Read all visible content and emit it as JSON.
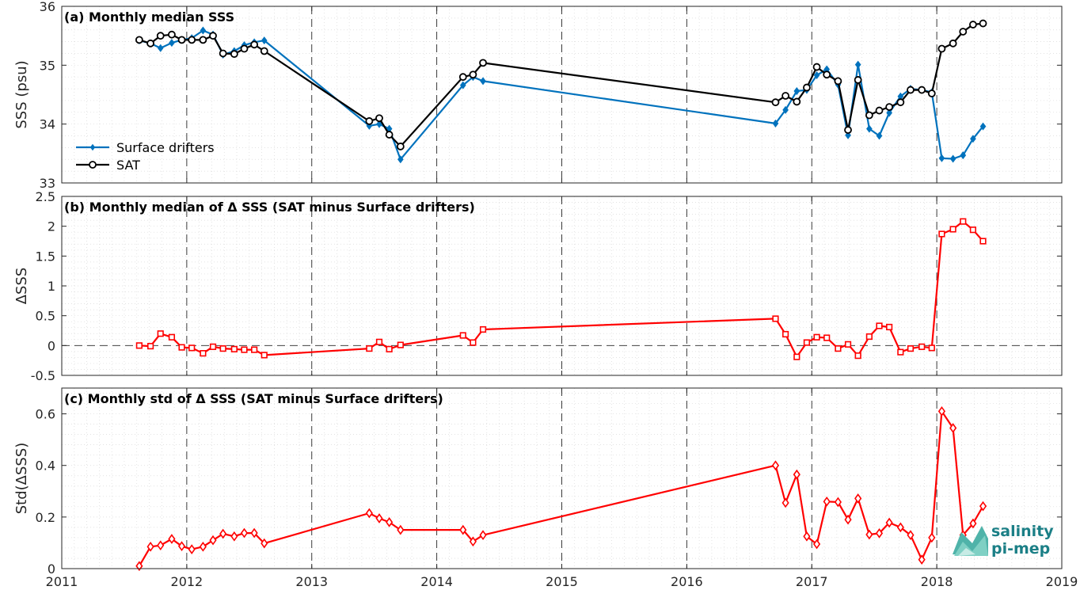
{
  "chart_data": [
    {
      "type": "line",
      "title": "(a) Monthly median SSS",
      "xlabel": "",
      "ylabel": "SSS (psu)",
      "xlim": [
        2011,
        2019
      ],
      "ylim": [
        33,
        36
      ],
      "xticks": [
        2011,
        2012,
        2013,
        2014,
        2015,
        2016,
        2017,
        2018,
        2019
      ],
      "yticks": [
        33,
        34,
        35,
        36
      ],
      "grid": "minor dotted, major dashed vertical at years",
      "legend": "bottom-left",
      "series": [
        {
          "name": "Surface drifters",
          "color": "#0072BD",
          "marker": "diamond",
          "x": [
            2011.62,
            2011.71,
            2011.79,
            2011.88,
            2011.96,
            2012.04,
            2012.13,
            2012.21,
            2012.29,
            2012.38,
            2012.46,
            2012.54,
            2012.62,
            2013.46,
            2013.54,
            2013.62,
            2013.71,
            2014.21,
            2014.29,
            2014.37,
            2016.71,
            2016.79,
            2016.88,
            2016.96,
            2017.04,
            2017.12,
            2017.21,
            2017.29,
            2017.37,
            2017.46,
            2017.54,
            2017.62,
            2017.71,
            2017.79,
            2017.88,
            2017.96,
            2018.04,
            2018.13,
            2018.21,
            2018.29,
            2018.37
          ],
          "y": [
            35.42,
            35.37,
            35.29,
            35.38,
            35.43,
            35.46,
            35.59,
            35.52,
            35.18,
            35.24,
            35.34,
            35.39,
            35.42,
            33.97,
            34.0,
            33.92,
            33.4,
            34.66,
            34.8,
            34.73,
            34.01,
            34.24,
            34.56,
            34.58,
            34.83,
            34.93,
            34.67,
            33.81,
            35.01,
            33.92,
            33.8,
            34.19,
            34.47,
            34.6,
            34.58,
            34.54,
            33.42,
            33.41,
            33.47,
            33.75,
            33.96
          ]
        },
        {
          "name": "SAT",
          "color": "#000000",
          "marker": "circle",
          "x": [
            2011.62,
            2011.71,
            2011.79,
            2011.88,
            2011.96,
            2012.04,
            2012.13,
            2012.21,
            2012.29,
            2012.38,
            2012.46,
            2012.54,
            2012.62,
            2013.46,
            2013.54,
            2013.62,
            2013.71,
            2014.21,
            2014.29,
            2014.37,
            2016.71,
            2016.79,
            2016.88,
            2016.96,
            2017.04,
            2017.12,
            2017.21,
            2017.29,
            2017.37,
            2017.46,
            2017.54,
            2017.62,
            2017.71,
            2017.79,
            2017.88,
            2017.96,
            2018.04,
            2018.13,
            2018.21,
            2018.29,
            2018.37
          ],
          "y": [
            35.43,
            35.37,
            35.5,
            35.52,
            35.43,
            35.43,
            35.43,
            35.5,
            35.2,
            35.19,
            35.28,
            35.35,
            35.24,
            34.05,
            34.1,
            33.82,
            33.62,
            34.8,
            34.84,
            35.04,
            34.37,
            34.48,
            34.38,
            34.62,
            34.97,
            34.84,
            34.73,
            33.9,
            34.75,
            34.15,
            34.23,
            34.29,
            34.37,
            34.58,
            34.58,
            34.52,
            35.28,
            35.37,
            35.57,
            35.69,
            35.71
          ]
        }
      ]
    },
    {
      "type": "line",
      "title": "(b) Monthly median of Δ SSS (SAT minus Surface drifters)",
      "xlabel": "",
      "ylabel": "ΔSSS",
      "xlim": [
        2011,
        2019
      ],
      "ylim": [
        -0.5,
        2.5
      ],
      "xticks": [
        2011,
        2012,
        2013,
        2014,
        2015,
        2016,
        2017,
        2018,
        2019
      ],
      "yticks": [
        -0.5,
        0,
        0.5,
        1,
        1.5,
        2,
        2.5
      ],
      "grid": "minor dotted, dashed zero line",
      "series": [
        {
          "name": "",
          "color": "#FF0000",
          "marker": "square",
          "x": [
            2011.62,
            2011.71,
            2011.79,
            2011.88,
            2011.96,
            2012.04,
            2012.13,
            2012.21,
            2012.29,
            2012.38,
            2012.46,
            2012.54,
            2012.62,
            2013.46,
            2013.54,
            2013.62,
            2013.71,
            2014.21,
            2014.29,
            2014.37,
            2016.71,
            2016.79,
            2016.88,
            2016.96,
            2017.04,
            2017.12,
            2017.21,
            2017.29,
            2017.37,
            2017.46,
            2017.54,
            2017.62,
            2017.71,
            2017.79,
            2017.88,
            2017.96,
            2018.04,
            2018.13,
            2018.21,
            2018.29,
            2018.37
          ],
          "y": [
            0.0,
            -0.01,
            0.2,
            0.14,
            -0.03,
            -0.04,
            -0.13,
            -0.02,
            -0.05,
            -0.06,
            -0.07,
            -0.07,
            -0.16,
            -0.05,
            0.06,
            -0.06,
            0.01,
            0.17,
            0.05,
            0.27,
            0.45,
            0.19,
            -0.19,
            0.05,
            0.14,
            0.13,
            -0.05,
            0.02,
            -0.17,
            0.15,
            0.33,
            0.31,
            -0.11,
            -0.05,
            -0.02,
            -0.04,
            1.87,
            1.95,
            2.08,
            1.94,
            1.75
          ]
        }
      ]
    },
    {
      "type": "line",
      "title": "(c) Monthly std of Δ SSS (SAT minus Surface drifters)",
      "xlabel": "",
      "ylabel": "Std(ΔSSS)",
      "xlim": [
        2011,
        2019
      ],
      "ylim": [
        0,
        0.7
      ],
      "xticks": [
        2011,
        2012,
        2013,
        2014,
        2015,
        2016,
        2017,
        2018,
        2019
      ],
      "yticks": [
        0,
        0.2,
        0.4,
        0.6
      ],
      "grid": "minor dotted, major dashed vertical at years",
      "series": [
        {
          "name": "",
          "color": "#FF0000",
          "marker": "diamond-open",
          "x": [
            2011.62,
            2011.71,
            2011.79,
            2011.88,
            2011.96,
            2012.04,
            2012.13,
            2012.21,
            2012.29,
            2012.38,
            2012.46,
            2012.54,
            2012.62,
            2013.46,
            2013.54,
            2013.62,
            2013.71,
            2014.21,
            2014.29,
            2014.37,
            2016.71,
            2016.79,
            2016.88,
            2016.96,
            2017.04,
            2017.12,
            2017.21,
            2017.29,
            2017.37,
            2017.46,
            2017.54,
            2017.62,
            2017.71,
            2017.79,
            2017.88,
            2017.96,
            2018.04,
            2018.13,
            2018.21,
            2018.29,
            2018.37
          ],
          "y": [
            0.01,
            0.085,
            0.09,
            0.115,
            0.087,
            0.075,
            0.085,
            0.11,
            0.135,
            0.125,
            0.138,
            0.138,
            0.098,
            0.215,
            0.195,
            0.18,
            0.15,
            0.15,
            0.105,
            0.13,
            0.4,
            0.255,
            0.365,
            0.125,
            0.095,
            0.26,
            0.258,
            0.19,
            0.272,
            0.132,
            0.137,
            0.178,
            0.16,
            0.13,
            0.035,
            0.12,
            0.61,
            0.545,
            0.13,
            0.175,
            0.242
          ]
        }
      ]
    }
  ],
  "logo": {
    "line1": "salinity",
    "line2": "pi-mep"
  }
}
